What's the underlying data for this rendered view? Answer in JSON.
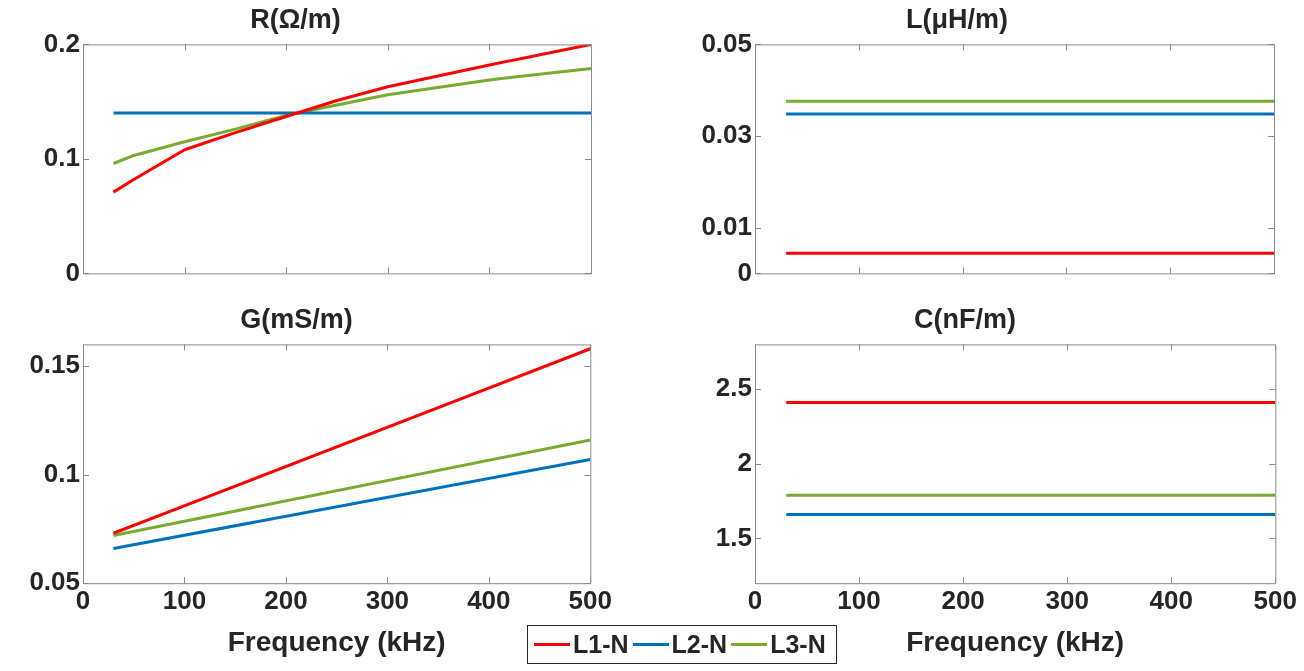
{
  "chart_data": [
    {
      "type": "line",
      "title": "R(Ω/m)",
      "xlim": [
        0,
        500
      ],
      "xticks": [
        0,
        100,
        200,
        300,
        400,
        500
      ],
      "ylim": [
        0,
        0.2
      ],
      "yticks": [
        0,
        0.1,
        0.2
      ],
      "tick_labels": "y",
      "grid": false,
      "legend": "bottom",
      "x": [
        30,
        50,
        100,
        150,
        200,
        250,
        300,
        400,
        500
      ],
      "series": [
        {
          "name": "L1-N",
          "color": "#ff0000",
          "values": [
            0.071,
            0.082,
            0.108,
            0.123,
            0.137,
            0.151,
            0.163,
            0.182,
            0.2
          ]
        },
        {
          "name": "L2-N",
          "color": "#0072bd",
          "values": [
            0.14,
            0.14,
            0.14,
            0.14,
            0.14,
            0.14,
            0.14,
            0.14,
            0.14
          ]
        },
        {
          "name": "L3-N",
          "color": "#77ac30",
          "values": [
            0.096,
            0.103,
            0.115,
            0.126,
            0.138,
            0.147,
            0.156,
            0.169,
            0.179
          ]
        }
      ]
    },
    {
      "type": "line",
      "title": "L(μH/m)",
      "xlim": [
        0,
        500
      ],
      "xticks": [
        0,
        100,
        200,
        300,
        400,
        500
      ],
      "ylim": [
        0,
        0.05
      ],
      "yticks": [
        0,
        0.01,
        0.03,
        0.05
      ],
      "tick_labels": "y",
      "grid": false,
      "x": [
        30,
        500
      ],
      "series": [
        {
          "color": "#ff0000",
          "values": [
            0.0044,
            0.0044
          ]
        },
        {
          "color": "#0072bd",
          "values": [
            0.0348,
            0.0348
          ]
        },
        {
          "color": "#77ac30",
          "values": [
            0.0376,
            0.0376
          ]
        }
      ]
    },
    {
      "type": "line",
      "title": "G(mS/m)",
      "xlabel": "Frequency (kHz)",
      "xlim": [
        0,
        500
      ],
      "xticks": [
        0,
        100,
        200,
        300,
        400,
        500
      ],
      "ylim": [
        0.05,
        0.16
      ],
      "yticks": [
        0.05,
        0.1,
        0.15
      ],
      "grid": false,
      "x": [
        30,
        500
      ],
      "series": [
        {
          "color": "#ff0000",
          "values": [
            0.073,
            0.158
          ]
        },
        {
          "color": "#0072bd",
          "values": [
            0.066,
            0.107
          ]
        },
        {
          "color": "#77ac30",
          "values": [
            0.072,
            0.116
          ]
        }
      ]
    },
    {
      "type": "line",
      "title": "C(nF/m)",
      "xlabel": "Frequency (kHz)",
      "xlim": [
        0,
        500
      ],
      "xticks": [
        0,
        100,
        200,
        300,
        400,
        500
      ],
      "ylim": [
        1.2,
        2.8
      ],
      "yticks": [
        1.5,
        2,
        2.5
      ],
      "grid": false,
      "x": [
        30,
        500
      ],
      "series": [
        {
          "color": "#ff0000",
          "values": [
            2.41,
            2.41
          ]
        },
        {
          "color": "#0072bd",
          "values": [
            1.66,
            1.66
          ]
        },
        {
          "color": "#77ac30",
          "values": [
            1.79,
            1.79
          ]
        }
      ]
    }
  ]
}
